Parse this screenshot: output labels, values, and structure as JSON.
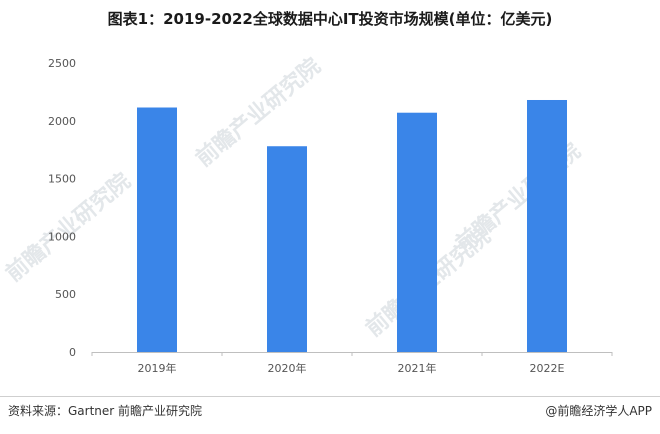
{
  "chart_data": {
    "type": "bar",
    "title": "图表1：2019-2022全球数据中心IT投资市场规模(单位：亿美元)",
    "categories": [
      "2019年",
      "2020年",
      "2021年",
      "2022E"
    ],
    "values": [
      2115,
      1780,
      2070,
      2180
    ],
    "ylim": [
      0,
      2500
    ],
    "yticks": [
      0,
      500,
      1000,
      1500,
      2000,
      2500
    ],
    "xlabel": "",
    "ylabel": "",
    "grid": false,
    "bar_color": "#3a85e8"
  },
  "footer": {
    "source": "资料来源：Gartner 前瞻产业研究院",
    "credit": "@前瞻经济学人APP"
  },
  "watermark": {
    "text": "前瞻产业研究院"
  }
}
